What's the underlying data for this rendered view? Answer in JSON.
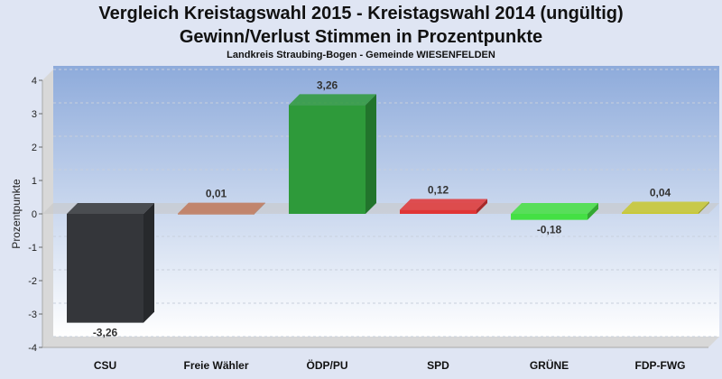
{
  "chart_data": {
    "type": "bar",
    "title": "Vergleich Kreistagswahl 2015 - Kreistagswahl 2014 (ungültig)",
    "subtitle": "Gewinn/Verlust Stimmen in Prozentpunkte",
    "caption": "Landkreis Straubing-Bogen - Gemeinde WIESENFELDEN",
    "ylabel": "Prozentpunkte",
    "xlabel": "",
    "ylim": [
      -4,
      4
    ],
    "yticks": [
      "4",
      "3",
      "2",
      "1",
      "0",
      "-1",
      "-2",
      "-3",
      "-4"
    ],
    "grid": true,
    "categories": [
      "CSU",
      "Freie Wähler",
      "ÖDP/PU",
      "SPD",
      "GRÜNE",
      "FDP-FWG"
    ],
    "values": [
      -3.26,
      0.01,
      3.26,
      0.12,
      -0.18,
      0.04
    ],
    "labels": [
      "-3,26",
      "0,01",
      "3,26",
      "0,12",
      "-0,18",
      "0,04"
    ],
    "colors": [
      "#34363a",
      "#c0785a",
      "#2e9a3a",
      "#e03535",
      "#44e044",
      "#c8c830"
    ]
  }
}
